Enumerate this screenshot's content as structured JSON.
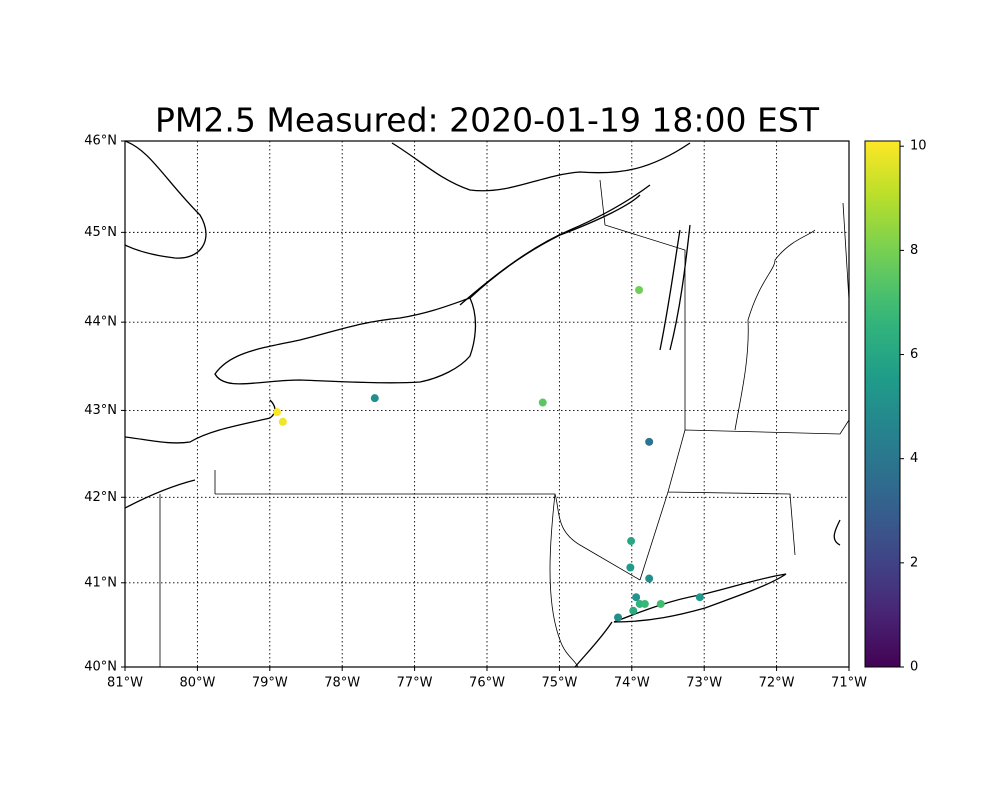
{
  "chart_data": {
    "type": "scatter",
    "title": "PM2.5 Measured: 2020-01-19 18:00 EST",
    "colormap": "viridis",
    "projection": "mercator",
    "x": [
      -73.9,
      -77.55,
      -75.23,
      -78.9,
      -78.82,
      -73.76,
      -74.01,
      -74.02,
      -73.76,
      -73.94,
      -73.89,
      -73.82,
      -73.6,
      -73.06,
      -74.19,
      -73.98
    ],
    "y": [
      44.36,
      43.14,
      43.09,
      42.98,
      42.87,
      42.64,
      41.49,
      41.18,
      41.05,
      40.83,
      40.75,
      40.75,
      40.75,
      40.83,
      40.59,
      40.67
    ],
    "values": [
      7.9,
      5.0,
      7.5,
      10.1,
      9.9,
      3.8,
      6.0,
      5.5,
      5.0,
      5.2,
      6.5,
      6.8,
      7.0,
      5.5,
      5.0,
      6.2
    ],
    "xlim": [
      -81,
      -71
    ],
    "ylim": [
      40,
      46
    ],
    "xticks": [
      {
        "value": -81,
        "label": "81°W"
      },
      {
        "value": -80,
        "label": "80°W"
      },
      {
        "value": -79,
        "label": "79°W"
      },
      {
        "value": -78,
        "label": "78°W"
      },
      {
        "value": -77,
        "label": "77°W"
      },
      {
        "value": -76,
        "label": "76°W"
      },
      {
        "value": -75,
        "label": "75°W"
      },
      {
        "value": -74,
        "label": "74°W"
      },
      {
        "value": -73,
        "label": "73°W"
      },
      {
        "value": -72,
        "label": "72°W"
      },
      {
        "value": -71,
        "label": "71°W"
      }
    ],
    "yticks": [
      {
        "value": 40,
        "label": "40°N"
      },
      {
        "value": 41,
        "label": "41°N"
      },
      {
        "value": 42,
        "label": "42°N"
      },
      {
        "value": 43,
        "label": "43°N"
      },
      {
        "value": 44,
        "label": "44°N"
      },
      {
        "value": 45,
        "label": "45°N"
      },
      {
        "value": 46,
        "label": "46°N"
      }
    ],
    "grid": true,
    "clim": [
      0,
      10.1
    ],
    "cticks": [
      0,
      2,
      4,
      6,
      8,
      10
    ]
  }
}
